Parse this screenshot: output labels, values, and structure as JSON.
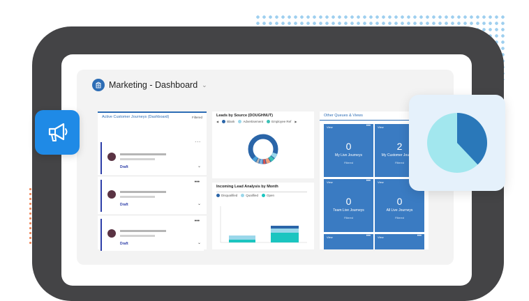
{
  "app": {
    "title": "Marketing - Dashboard"
  },
  "journeys": {
    "title": "Active Customer Journeys (Dashboard)",
    "filter_label": "Filtered",
    "items": [
      {
        "status": "Draft"
      },
      {
        "status": "Draft"
      },
      {
        "status": "Draft"
      }
    ]
  },
  "leads_source": {
    "title": "Leads by Source (DOUGHNUT)",
    "legend": [
      "Blank",
      "Advertisement",
      "Employee Ref"
    ]
  },
  "incoming": {
    "title": "Incoming Lead Analysis by Month",
    "legend": [
      "Disqualified",
      "Qualified",
      "Open"
    ]
  },
  "queues": {
    "title": "Other Queues & Views",
    "tiles": [
      {
        "view": "View",
        "count": "0",
        "name": "My Live Journeys",
        "filter": "Filtered"
      },
      {
        "view": "View",
        "count": "2",
        "name": "My Customer Journeys",
        "filter": "Filtered"
      },
      {
        "view": "View",
        "count": "0",
        "name": "Team Live Journeys",
        "filter": "Filtered"
      },
      {
        "view": "View",
        "count": "0",
        "name": "All Live Journeys",
        "filter": "Filtered"
      },
      {
        "view": "View"
      },
      {
        "view": "View"
      }
    ]
  },
  "colors": {
    "accent": "#2d6db5",
    "tile": "#3a7bc2",
    "frame": "#444446",
    "megaphone": "#1f8ae6",
    "pie_light": "#a2e7ee",
    "pie_dark": "#2a78b9"
  },
  "icons": {
    "app": "building-icon",
    "megaphone": "megaphone-icon"
  }
}
